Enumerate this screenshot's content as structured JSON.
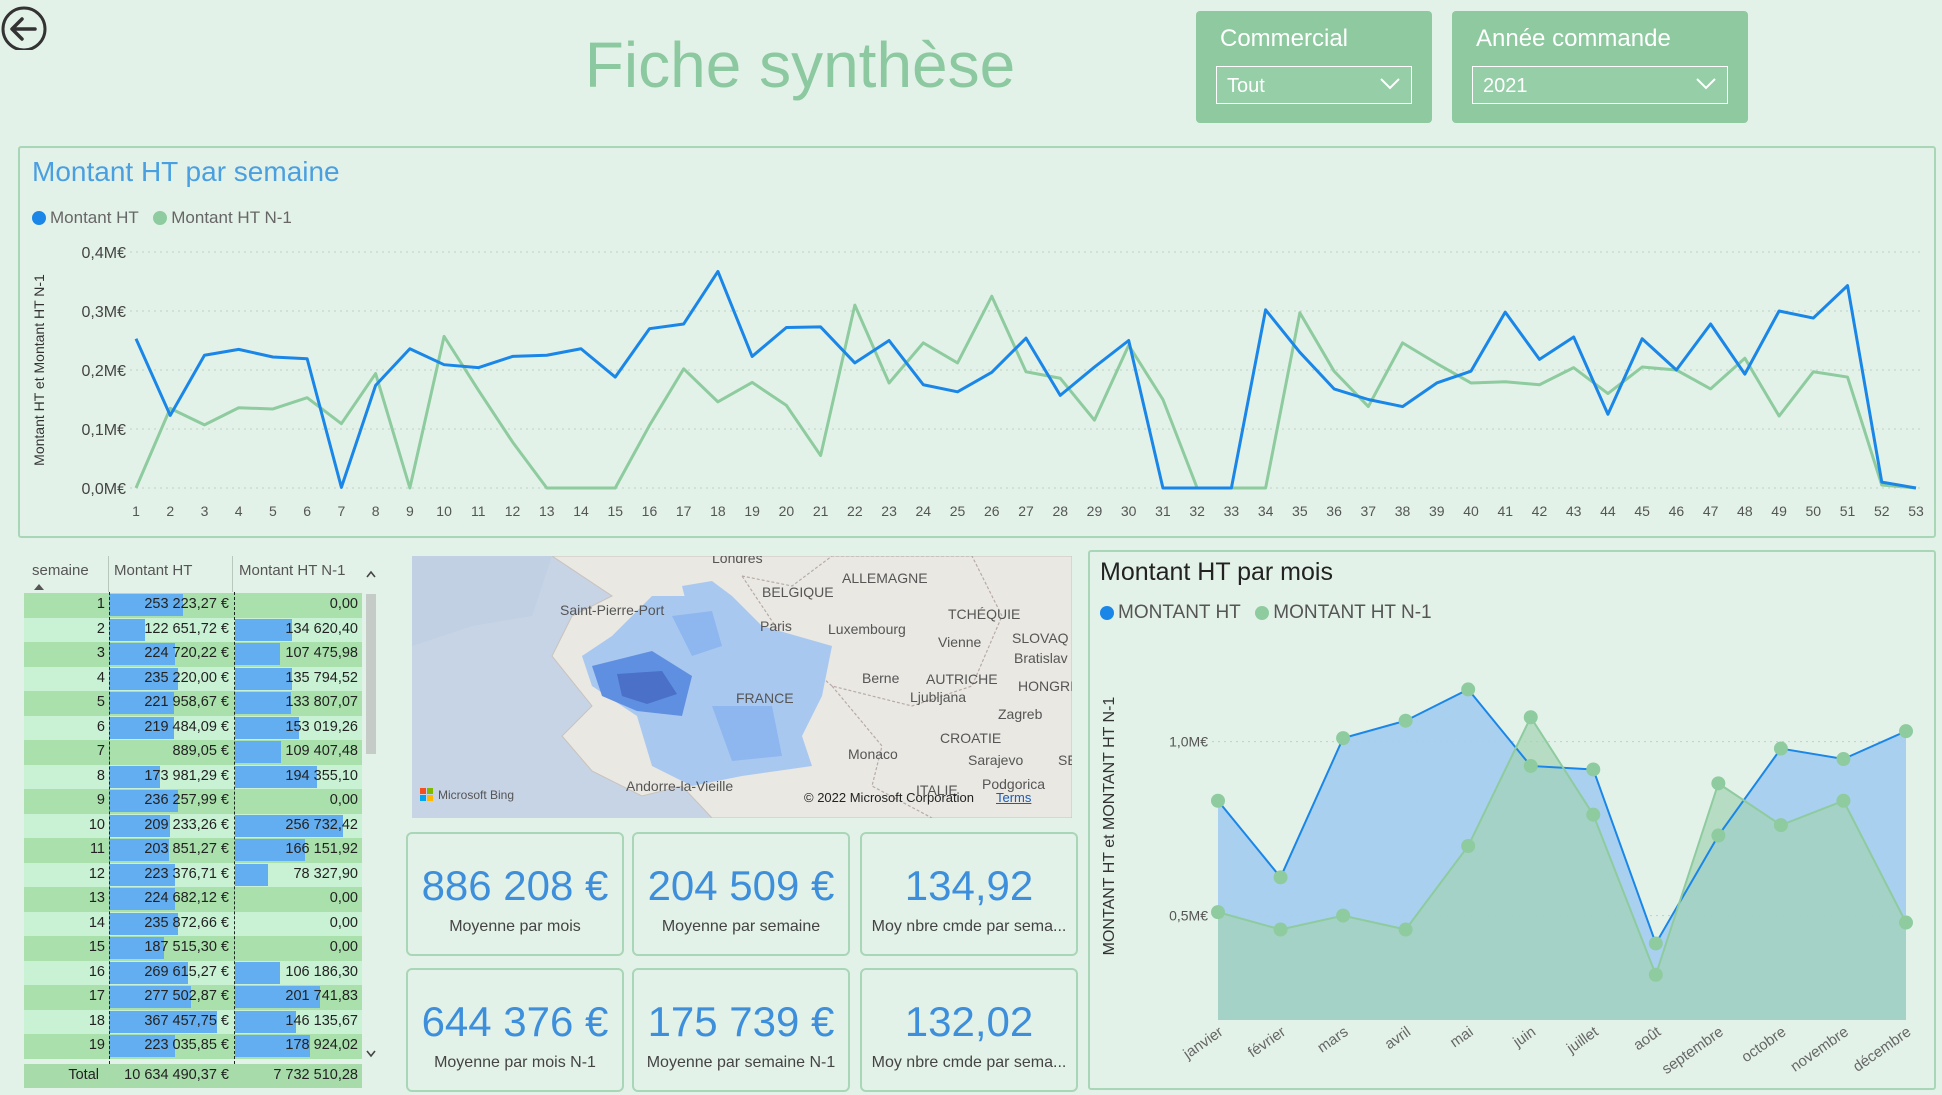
{
  "page": {
    "title": "Fiche synthèse"
  },
  "slicers": [
    {
      "label": "Commercial",
      "value": "Tout"
    },
    {
      "label": "Année commande",
      "value": "2021"
    }
  ],
  "colors": {
    "current": "#1a86e8",
    "previous": "#8ecb9f",
    "accent": "#8ec9a0"
  },
  "weekly": {
    "title": "Montant HT par semaine",
    "legend": [
      "Montant HT",
      "Montant HT N-1"
    ],
    "chart_data": {
      "type": "line",
      "title": "Montant HT par semaine",
      "ylabel": "Montant HT et Montant HT N-1",
      "xlabel": "",
      "ylim": [
        0,
        0.4
      ],
      "yticks": [
        "0,0M€",
        "0,1M€",
        "0,2M€",
        "0,3M€",
        "0,4M€"
      ],
      "grid": true,
      "legend": "top-left",
      "x": [
        1,
        2,
        3,
        4,
        5,
        6,
        7,
        8,
        9,
        10,
        11,
        12,
        13,
        14,
        15,
        16,
        17,
        18,
        19,
        20,
        21,
        22,
        23,
        24,
        25,
        26,
        27,
        28,
        29,
        30,
        31,
        32,
        33,
        34,
        35,
        36,
        37,
        38,
        39,
        40,
        41,
        42,
        43,
        44,
        45,
        46,
        47,
        48,
        49,
        50,
        51,
        52,
        53
      ],
      "series": [
        {
          "name": "Montant HT",
          "values": [
            0.253,
            0.123,
            0.225,
            0.235,
            0.222,
            0.219,
            0.001,
            0.174,
            0.236,
            0.209,
            0.204,
            0.223,
            0.225,
            0.236,
            0.188,
            0.27,
            0.278,
            0.367,
            0.223,
            0.272,
            0.273,
            0.212,
            0.25,
            0.175,
            0.163,
            0.196,
            0.254,
            0.157,
            0.205,
            0.25,
            0.0,
            0.0,
            0.0,
            0.302,
            0.23,
            0.168,
            0.15,
            0.138,
            0.178,
            0.198,
            0.298,
            0.218,
            0.256,
            0.125,
            0.253,
            0.2,
            0.278,
            0.193,
            0.3,
            0.288,
            0.343,
            0.01,
            0.0
          ]
        },
        {
          "name": "Montant HT N-1",
          "values": [
            0.0,
            0.135,
            0.107,
            0.136,
            0.134,
            0.153,
            0.109,
            0.194,
            0.0,
            0.257,
            0.166,
            0.078,
            0.0,
            0.0,
            0.0,
            0.106,
            0.202,
            0.146,
            0.179,
            0.14,
            0.055,
            0.31,
            0.178,
            0.246,
            0.212,
            0.325,
            0.197,
            0.186,
            0.115,
            0.242,
            0.15,
            0.0,
            0.0,
            0.0,
            0.297,
            0.198,
            0.138,
            0.246,
            0.211,
            0.178,
            0.18,
            0.175,
            0.204,
            0.16,
            0.205,
            0.2,
            0.168,
            0.22,
            0.122,
            0.197,
            0.188,
            0.005,
            0.0
          ]
        }
      ]
    }
  },
  "table": {
    "headers": [
      "semaine",
      "Montant HT",
      "Montant HT N-1"
    ],
    "rows": [
      {
        "week": "1",
        "ht": "253 223,27 €",
        "n1": "0,00",
        "htv": 253223,
        "n1v": 0
      },
      {
        "week": "2",
        "ht": "122 651,72 €",
        "n1": "134 620,40",
        "htv": 122652,
        "n1v": 134620
      },
      {
        "week": "3",
        "ht": "224 720,22 €",
        "n1": "107 475,98",
        "htv": 224720,
        "n1v": 107476
      },
      {
        "week": "4",
        "ht": "235 220,00 €",
        "n1": "135 794,52",
        "htv": 235220,
        "n1v": 135795
      },
      {
        "week": "5",
        "ht": "221 958,67 €",
        "n1": "133 807,07",
        "htv": 221959,
        "n1v": 133807
      },
      {
        "week": "6",
        "ht": "219 484,09 €",
        "n1": "153 019,26",
        "htv": 219484,
        "n1v": 153019
      },
      {
        "week": "7",
        "ht": "889,05 €",
        "n1": "109 407,48",
        "htv": 889,
        "n1v": 109407
      },
      {
        "week": "8",
        "ht": "173 981,29 €",
        "n1": "194 355,10",
        "htv": 173981,
        "n1v": 194355
      },
      {
        "week": "9",
        "ht": "236 257,99 €",
        "n1": "0,00",
        "htv": 236258,
        "n1v": 0
      },
      {
        "week": "10",
        "ht": "209 233,26 €",
        "n1": "256 732,42",
        "htv": 209233,
        "n1v": 256732
      },
      {
        "week": "11",
        "ht": "203 851,27 €",
        "n1": "166 151,92",
        "htv": 203851,
        "n1v": 166152
      },
      {
        "week": "12",
        "ht": "223 376,71 €",
        "n1": "78 327,90",
        "htv": 223377,
        "n1v": 78328
      },
      {
        "week": "13",
        "ht": "224 682,12 €",
        "n1": "0,00",
        "htv": 224682,
        "n1v": 0
      },
      {
        "week": "14",
        "ht": "235 872,66 €",
        "n1": "0,00",
        "htv": 235873,
        "n1v": 0
      },
      {
        "week": "15",
        "ht": "187 515,30 €",
        "n1": "0,00",
        "htv": 187515,
        "n1v": 0
      },
      {
        "week": "16",
        "ht": "269 615,27 €",
        "n1": "106 186,30",
        "htv": 269615,
        "n1v": 106186
      },
      {
        "week": "17",
        "ht": "277 502,87 €",
        "n1": "201 741,83",
        "htv": 277503,
        "n1v": 201742
      },
      {
        "week": "18",
        "ht": "367 457,75 €",
        "n1": "146 135,67",
        "htv": 367458,
        "n1v": 146136
      },
      {
        "week": "19",
        "ht": "223 035,85 €",
        "n1": "178 924,02",
        "htv": 223036,
        "n1v": 178924
      }
    ],
    "total": {
      "label": "Total",
      "ht": "10 634 490,37 €",
      "n1": "7 732 510,28"
    }
  },
  "map": {
    "labels": [
      "ALLEMAGNE",
      "BELGIQUE",
      "Saint-Pierre-Port",
      "Paris",
      "Luxembourg",
      "TCHÉQUIE",
      "Vienne",
      "SLOVAQ",
      "Bratislav",
      "FRANCE",
      "Berne",
      "AUTRICHE",
      "HONGRI",
      "Ljubljana",
      "Zagreb",
      "CROATIE",
      "Monaco",
      "Sarajevo",
      "SE",
      "Andorre-la-Vieille",
      "ITALIE",
      "Podgorica",
      "Londres"
    ],
    "brand": "Microsoft Bing",
    "copyright": "© 2022 Microsoft Corporation",
    "terms": "Terms"
  },
  "kpis": [
    {
      "value": "886 208 €",
      "label": "Moyenne par mois"
    },
    {
      "value": "204 509 €",
      "label": "Moyenne par semaine"
    },
    {
      "value": "134,92",
      "label": "Moy nbre cmde par sema..."
    },
    {
      "value": "644 376 €",
      "label": "Moyenne par mois N-1"
    },
    {
      "value": "175 739 €",
      "label": "Moyenne par semaine N-1"
    },
    {
      "value": "132,02",
      "label": "Moy nbre cmde par sema..."
    }
  ],
  "monthly": {
    "title": "Montant HT par mois",
    "legend": [
      "MONTANT HT",
      "MONTANT HT N-1"
    ],
    "chart_data": {
      "type": "area",
      "title": "Montant HT par mois",
      "ylabel": "MONTANT HT et MONTANT HT N-1",
      "xlabel": "",
      "ylim": [
        0.2,
        1.2
      ],
      "yticks": [
        "0,5M€",
        "1,0M€"
      ],
      "legend": "top-left",
      "categories": [
        "janvier",
        "février",
        "mars",
        "avril",
        "mai",
        "juin",
        "juillet",
        "août",
        "septembre",
        "octobre",
        "novembre",
        "décembre"
      ],
      "series": [
        {
          "name": "MONTANT HT",
          "values": [
            0.83,
            0.61,
            1.01,
            1.06,
            1.15,
            0.93,
            0.92,
            0.42,
            0.73,
            0.98,
            0.95,
            1.03
          ]
        },
        {
          "name": "MONTANT HT N-1",
          "values": [
            0.51,
            0.46,
            0.5,
            0.46,
            0.7,
            1.07,
            0.79,
            0.33,
            0.88,
            0.76,
            0.83,
            0.48
          ]
        }
      ]
    }
  }
}
